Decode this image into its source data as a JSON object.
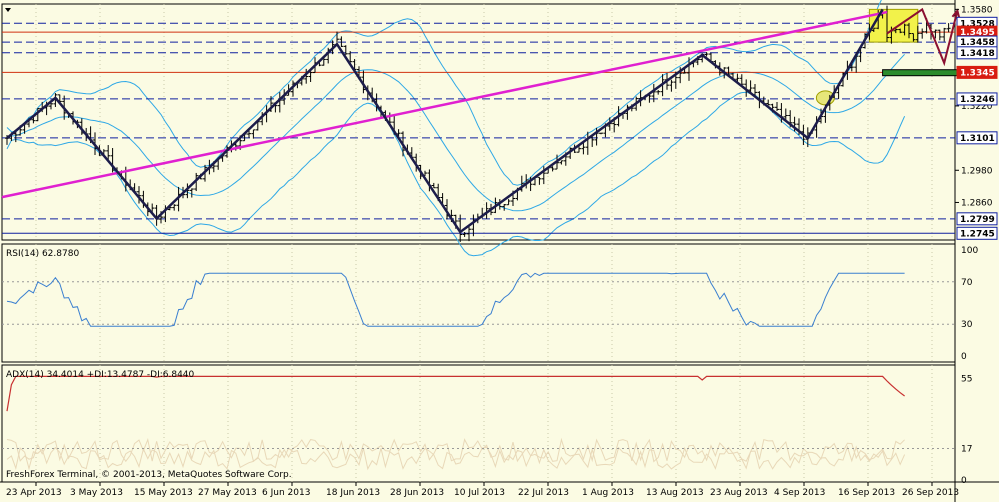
{
  "chart_data": [
    {
      "type": "candlestick",
      "pane": "price",
      "ylim": [
        1.272,
        1.36
      ],
      "axis_ticks": [
        "1.3580",
        "1.3220",
        "1.2980",
        "1.2860"
      ],
      "axis_tick_values": [
        1.358,
        1.322,
        1.298,
        1.286
      ],
      "price_labels": [
        {
          "text": "1.3528",
          "value": 1.3528,
          "style": "white",
          "line": "blue-dash"
        },
        {
          "text": "1.3495",
          "value": 1.3495,
          "style": "red",
          "line": "red"
        },
        {
          "text": "1.3458",
          "value": 1.3458,
          "style": "white",
          "line": "blue-dash"
        },
        {
          "text": "1.3418",
          "value": 1.3418,
          "style": "white",
          "line": "blue-dash"
        },
        {
          "text": "1.3345",
          "value": 1.3345,
          "style": "red",
          "line": "red"
        },
        {
          "text": "1.3246",
          "value": 1.3246,
          "style": "white",
          "line": "blue-dash"
        },
        {
          "text": "1.3101",
          "value": 1.3101,
          "style": "white",
          "line": "blue-dash"
        },
        {
          "text": "1.2799",
          "value": 1.2799,
          "style": "white",
          "line": "blue-dash"
        },
        {
          "text": "1.2745",
          "value": 1.2745,
          "style": "white",
          "line": "blue-solid"
        }
      ],
      "zigzag": [
        [
          0,
          1.31
        ],
        [
          11,
          1.325
        ],
        [
          34,
          1.28
        ],
        [
          75,
          1.345
        ],
        [
          103,
          1.275
        ],
        [
          158,
          1.341
        ],
        [
          182,
          1.31
        ],
        [
          199,
          1.358
        ]
      ],
      "trendline": [
        [
          0,
          1.288
        ],
        [
          200,
          1.357
        ]
      ]
    },
    {
      "type": "line",
      "pane": "RSI",
      "label": "RSI(14) 62.8780",
      "ylim": [
        0,
        100
      ],
      "axis_ticks": [
        "100",
        "70",
        "30",
        "0"
      ],
      "levels": [
        70,
        30
      ]
    },
    {
      "type": "line",
      "pane": "ADX",
      "label": "ADX(14) 34.4014 +DI:13.4787 -DI:6.8440",
      "ylim": [
        0,
        60
      ],
      "axis_ticks": [
        "55",
        "17",
        "0"
      ]
    }
  ],
  "x_axis_labels": [
    "23 Apr 2013",
    "3 May 2013",
    "15 May 2013",
    "27 May 2013",
    "6 Jun 2013",
    "18 Jun 2013",
    "28 Jun 2013",
    "10 Jul 2013",
    "22 Jul 2013",
    "1 Aug 2013",
    "13 Aug 2013",
    "23 Aug 2013",
    "4 Sep 2013",
    "16 Sep 2013",
    "26 Sep 2013"
  ],
  "copyright": "FreshForex Terminal, © 2001-2013, MetaQuotes Software Corp.",
  "colors": {
    "background": "#fbfbe3",
    "grid": "#c8c8a8",
    "candle": "#000000",
    "zigzag": "#1c1c4a",
    "trend": "#e020d0",
    "band": "#2ea8e6",
    "rsi": "#3a7fd0",
    "adx": "#c83030",
    "hline_red": "#d03010",
    "hline_blue": "#1020a0",
    "target_box": "#f2f24a",
    "arrow": "#8b1030"
  },
  "icons": {
    "menu": "triangle-down-icon"
  }
}
